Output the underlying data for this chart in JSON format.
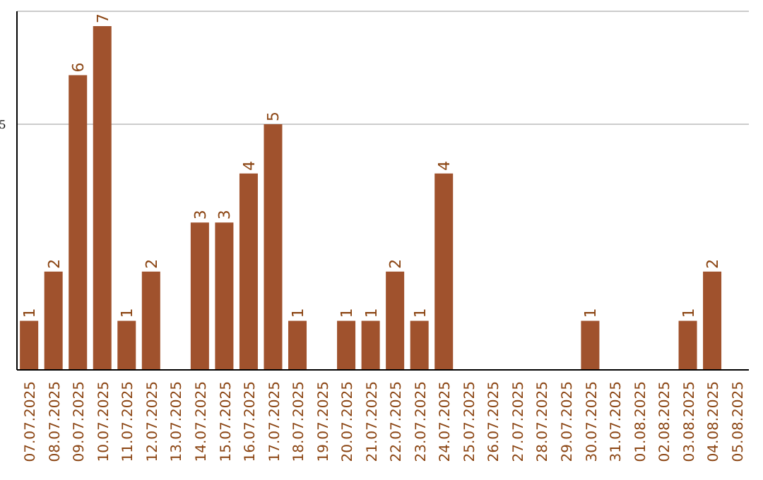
{
  "chart_data": {
    "type": "bar",
    "categories": [
      "07.07.2025",
      "08.07.2025",
      "09.07.2025",
      "10.07.2025",
      "11.07.2025",
      "12.07.2025",
      "13.07.2025",
      "14.07.2025",
      "15.07.2025",
      "16.07.2025",
      "17.07.2025",
      "18.07.2025",
      "19.07.2025",
      "20.07.2025",
      "21.07.2025",
      "22.07.2025",
      "23.07.2025",
      "24.07.2025",
      "25.07.2025",
      "26.07.2025",
      "27.07.2025",
      "28.07.2025",
      "29.07.2025",
      "30.07.2025",
      "31.07.2025",
      "01.08.2025",
      "02.08.2025",
      "03.08.2025",
      "04.08.2025",
      "05.08.2025"
    ],
    "values": [
      1,
      2,
      6,
      7,
      1,
      2,
      0,
      3,
      3,
      4,
      5,
      1,
      0,
      1,
      1,
      2,
      1,
      4,
      0,
      0,
      0,
      0,
      0,
      1,
      0,
      0,
      0,
      1,
      2,
      0
    ],
    "value_labels": [
      "1",
      "2",
      "6",
      "7",
      "1",
      "2",
      null,
      "3",
      "3",
      "4",
      "5",
      "1",
      null,
      "1",
      "1",
      "2",
      "1",
      "4",
      null,
      null,
      null,
      null,
      null,
      "1",
      null,
      null,
      null,
      "1",
      "2",
      null
    ],
    "color": "#a0522d",
    "ylim": [
      0,
      7.3
    ],
    "yticks": [
      5
    ],
    "grid": "y"
  }
}
